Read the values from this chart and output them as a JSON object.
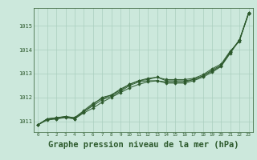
{
  "background_color": "#cce8dc",
  "grid_color": "#aacfbf",
  "line_color": "#2d5a2d",
  "marker_color": "#2d5a2d",
  "title": "Graphe pression niveau de la mer (hPa)",
  "title_fontsize": 7.5,
  "ylabel_values": [
    1011,
    1012,
    1013,
    1014,
    1015
  ],
  "xlim": [
    -0.5,
    23.5
  ],
  "ylim": [
    1010.55,
    1015.75
  ],
  "x_ticks": [
    0,
    1,
    2,
    3,
    4,
    5,
    6,
    7,
    8,
    9,
    10,
    11,
    12,
    13,
    14,
    15,
    16,
    17,
    18,
    19,
    20,
    21,
    22,
    23
  ],
  "series": [
    [
      1010.85,
      1011.1,
      1011.15,
      1011.2,
      1011.15,
      1011.4,
      1011.7,
      1012.0,
      1012.1,
      1012.35,
      1012.55,
      1012.7,
      1012.8,
      1012.85,
      1012.75,
      1012.75,
      1012.75,
      1012.8,
      1012.95,
      1013.2,
      1013.4,
      1013.95,
      1014.35,
      1015.55
    ],
    [
      1010.85,
      1011.1,
      1011.15,
      1011.2,
      1011.15,
      1011.45,
      1011.75,
      1011.95,
      1012.1,
      1012.3,
      1012.55,
      1012.7,
      1012.75,
      1012.85,
      1012.7,
      1012.7,
      1012.7,
      1012.75,
      1012.9,
      1013.15,
      1013.35,
      1013.9,
      1014.4,
      1015.5
    ],
    [
      1010.85,
      1011.05,
      1011.1,
      1011.15,
      1011.1,
      1011.35,
      1011.55,
      1011.8,
      1012.0,
      1012.2,
      1012.4,
      1012.55,
      1012.65,
      1012.7,
      1012.6,
      1012.6,
      1012.6,
      1012.7,
      1012.85,
      1013.05,
      1013.3,
      1013.85,
      1014.4,
      1015.5
    ],
    [
      1010.85,
      1011.1,
      1011.1,
      1011.2,
      1011.1,
      1011.4,
      1011.65,
      1011.9,
      1012.05,
      1012.25,
      1012.5,
      1012.65,
      1012.7,
      1012.7,
      1012.65,
      1012.65,
      1012.65,
      1012.75,
      1012.9,
      1013.1,
      1013.32,
      1013.9,
      1014.42,
      1015.55
    ]
  ]
}
